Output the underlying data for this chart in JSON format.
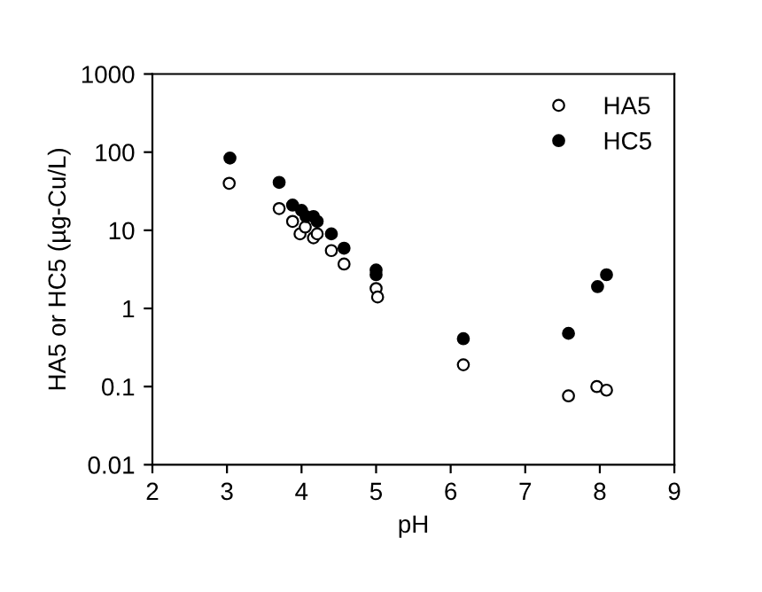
{
  "chart_data": {
    "type": "scatter",
    "xlabel": "pH",
    "ylabel": "HA5 or HC5 (µg-Cu/L)",
    "log": "y",
    "xlim": [
      2,
      9
    ],
    "xticks": [
      2,
      3,
      4,
      5,
      6,
      7,
      8,
      9
    ],
    "ylim": [
      0.01,
      1000
    ],
    "yticks": [
      {
        "value": 0.01,
        "label": "0.01"
      },
      {
        "value": 0.1,
        "label": "0.1"
      },
      {
        "value": 1,
        "label": "1"
      },
      {
        "value": 10,
        "label": "10"
      },
      {
        "value": 100,
        "label": "100"
      },
      {
        "value": 1000,
        "label": "1000"
      }
    ],
    "grid": false,
    "legend": "top right",
    "marker": "circle",
    "series": [
      {
        "name": "HA5",
        "color": "#ffffff",
        "x": [
          3.03,
          3.7,
          3.88,
          3.98,
          4.05,
          4.16,
          4.21,
          4.4,
          4.57,
          5.0,
          5.02,
          6.17,
          7.58,
          7.96,
          8.09
        ],
        "values": [
          40,
          19,
          13,
          9,
          11,
          8,
          9,
          5.5,
          3.7,
          1.8,
          1.4,
          0.19,
          0.076,
          0.1,
          0.09
        ]
      },
      {
        "name": "HC5",
        "color": "#000000",
        "x": [
          3.04,
          3.7,
          3.88,
          4.0,
          4.06,
          4.16,
          4.21,
          4.4,
          4.57,
          5.0,
          5.0,
          6.17,
          7.58,
          7.97,
          8.09
        ],
        "values": [
          84,
          41,
          21,
          18,
          15,
          15,
          13,
          9,
          5.9,
          3.1,
          2.7,
          0.41,
          0.48,
          1.9,
          2.7
        ]
      }
    ]
  }
}
